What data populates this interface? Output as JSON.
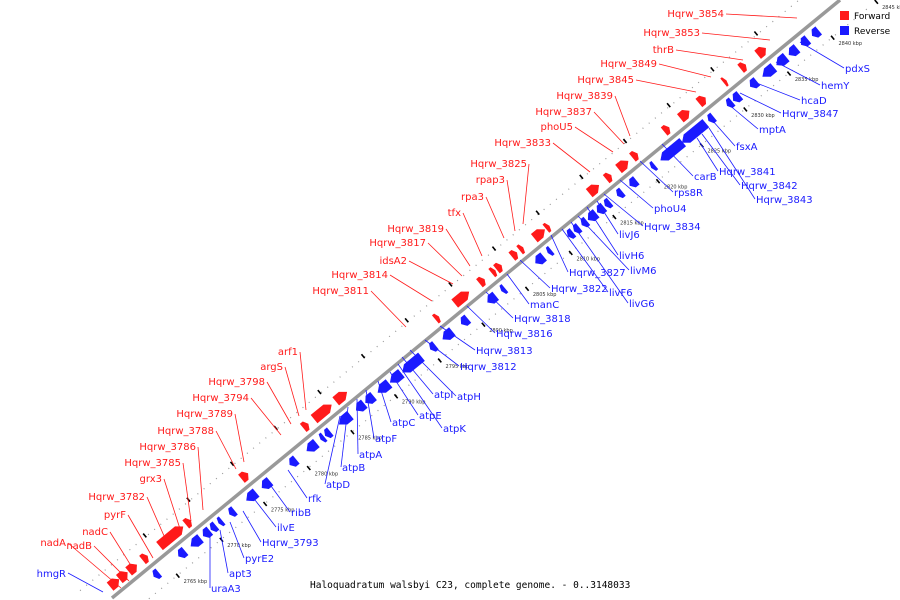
{
  "caption": "Haloquadratum walsbyi C23, complete genome. - 0..3148033",
  "legend": {
    "items": [
      {
        "label": "Forward",
        "color": "#ff1a1a"
      },
      {
        "label": "Reverse",
        "color": "#1a1aff"
      }
    ]
  },
  "colors": {
    "forward": "#ff1a1a",
    "reverse": "#1a1aff",
    "backbone": "#999999"
  },
  "ticks": [
    "2765 kbp",
    "2770 kbp",
    "2775 kbp",
    "2780 kbp",
    "2785 kbp",
    "2790 kbp",
    "2795 kbp",
    "2800 kbp",
    "2805 kbp",
    "2810 kbp",
    "2815 kbp",
    "2820 kbp",
    "2825 kbp",
    "2830 kbp",
    "2835 kbp",
    "2840 kbp",
    "2845 kbp"
  ],
  "forward_labels": [
    "nadA",
    "nadB",
    "nadC",
    "pyrF",
    "Hqrw_3782",
    "grx3",
    "Hqrw_3785",
    "Hqrw_3786",
    "Hqrw_3788",
    "Hqrw_3789",
    "Hqrw_3794",
    "Hqrw_3798",
    "argS",
    "arf1",
    "Hqrw_3811",
    "Hqrw_3814",
    "idsA2",
    "Hqrw_3817",
    "Hqrw_3819",
    "tfx",
    "rpa3",
    "rpap3",
    "Hqrw_3825",
    "Hqrw_3833",
    "phoU5",
    "Hqrw_3837",
    "Hqrw_3839",
    "Hqrw_3845",
    "Hqrw_3849",
    "thrB",
    "Hqrw_3853",
    "Hqrw_3854"
  ],
  "reverse_labels": [
    "hmgR",
    "uraA3",
    "apt3",
    "pyrE2",
    "Hqrw_3793",
    "ilvE",
    "ribB",
    "rfk",
    "atpD",
    "atpB",
    "atpA",
    "atpF",
    "atpC",
    "atpE",
    "atpK",
    "atpI",
    "atpH",
    "Hqrw_3812",
    "Hqrw_3813",
    "Hqrw_3816",
    "Hqrw_3818",
    "manC",
    "Hqrw_3822",
    "Hqrw_3827",
    "livF6",
    "livG6",
    "livM6",
    "livH6",
    "livJ6",
    "Hqrw_3834",
    "phoU4",
    "rps8R",
    "carB",
    "Hqrw_3841",
    "Hqrw_3842",
    "Hqrw_3843",
    "fsxA",
    "mptA",
    "Hqrw_3847",
    "hcaD",
    "hemY",
    "pdxS"
  ]
}
